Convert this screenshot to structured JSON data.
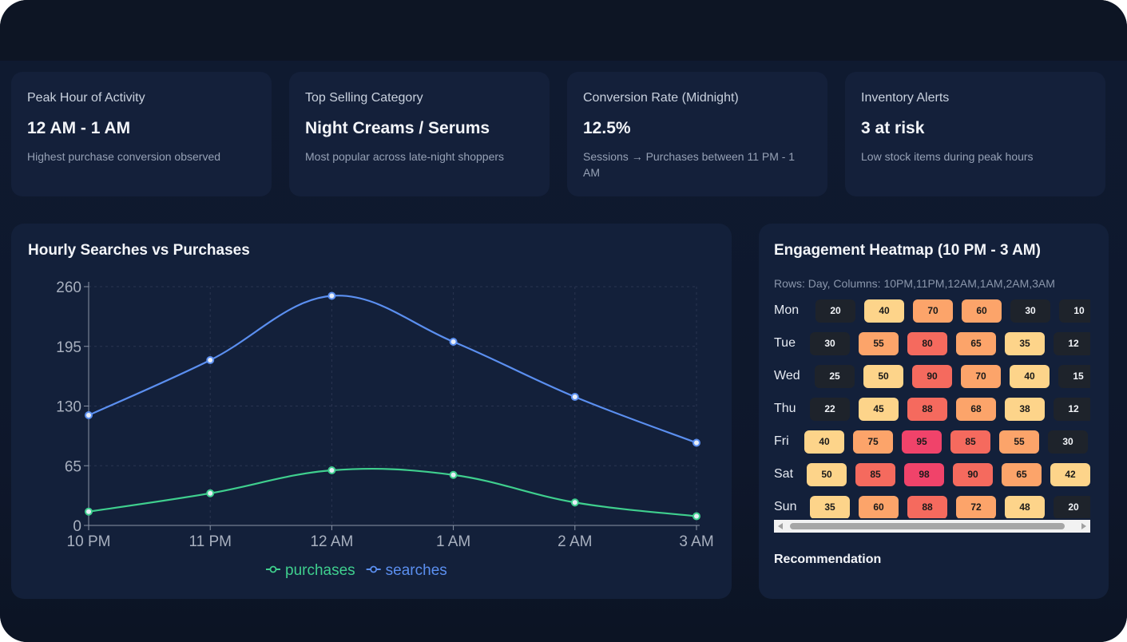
{
  "kpis": [
    {
      "label": "Peak Hour of Activity",
      "value": "12 AM - 1 AM",
      "sub": "Highest purchase conversion observed"
    },
    {
      "label": "Top Selling Category",
      "value": "Night Creams / Serums",
      "sub": "Most popular across late-night shoppers"
    },
    {
      "label": "Conversion Rate (Midnight)",
      "value": "12.5%",
      "sub": "Sessions → Purchases between 11 PM - 1 AM"
    },
    {
      "label": "Inventory Alerts",
      "value": "3 at risk",
      "sub": "Low stock items during peak hours"
    }
  ],
  "line_panel": {
    "title": "Hourly Searches vs Purchases"
  },
  "heat_panel": {
    "title": "Engagement Heatmap (10 PM - 3 AM)",
    "hint": "Rows: Day, Columns: 10PM,11PM,12AM,1AM,2AM,3AM",
    "recommendation_label": "Recommendation"
  },
  "colors": {
    "purchases": "#3fcf8e",
    "searches": "#5b8ff0",
    "heat_dark": "#1e232b",
    "heat_low": "#fdd48a",
    "heat_mid": "#fca46a",
    "heat_high": "#f56a5e",
    "heat_max": "#f0436a"
  },
  "chart_data": [
    {
      "type": "line",
      "title": "Hourly Searches vs Purchases",
      "categories": [
        "10 PM",
        "11 PM",
        "12 AM",
        "1 AM",
        "2 AM",
        "3 AM"
      ],
      "series": [
        {
          "name": "purchases",
          "values": [
            15,
            35,
            60,
            55,
            25,
            10
          ]
        },
        {
          "name": "searches",
          "values": [
            120,
            180,
            250,
            200,
            140,
            90
          ]
        }
      ],
      "ylim": [
        0,
        260
      ],
      "yticks": [
        0,
        65,
        130,
        195,
        260
      ],
      "legend": "bottom-center",
      "grid": true
    },
    {
      "type": "heatmap",
      "title": "Engagement Heatmap (10 PM - 3 AM)",
      "rows": [
        "Mon",
        "Tue",
        "Wed",
        "Thu",
        "Fri",
        "Sat",
        "Sun"
      ],
      "columns": [
        "10PM",
        "11PM",
        "12AM",
        "1AM",
        "2AM",
        "3AM"
      ],
      "values": [
        [
          20,
          40,
          70,
          60,
          30,
          10
        ],
        [
          30,
          55,
          80,
          65,
          35,
          12
        ],
        [
          25,
          50,
          90,
          70,
          40,
          15
        ],
        [
          22,
          45,
          88,
          68,
          38,
          12
        ],
        [
          40,
          75,
          95,
          85,
          55,
          30
        ],
        [
          50,
          85,
          98,
          90,
          65,
          42
        ],
        [
          35,
          60,
          88,
          72,
          48,
          20
        ]
      ]
    }
  ]
}
